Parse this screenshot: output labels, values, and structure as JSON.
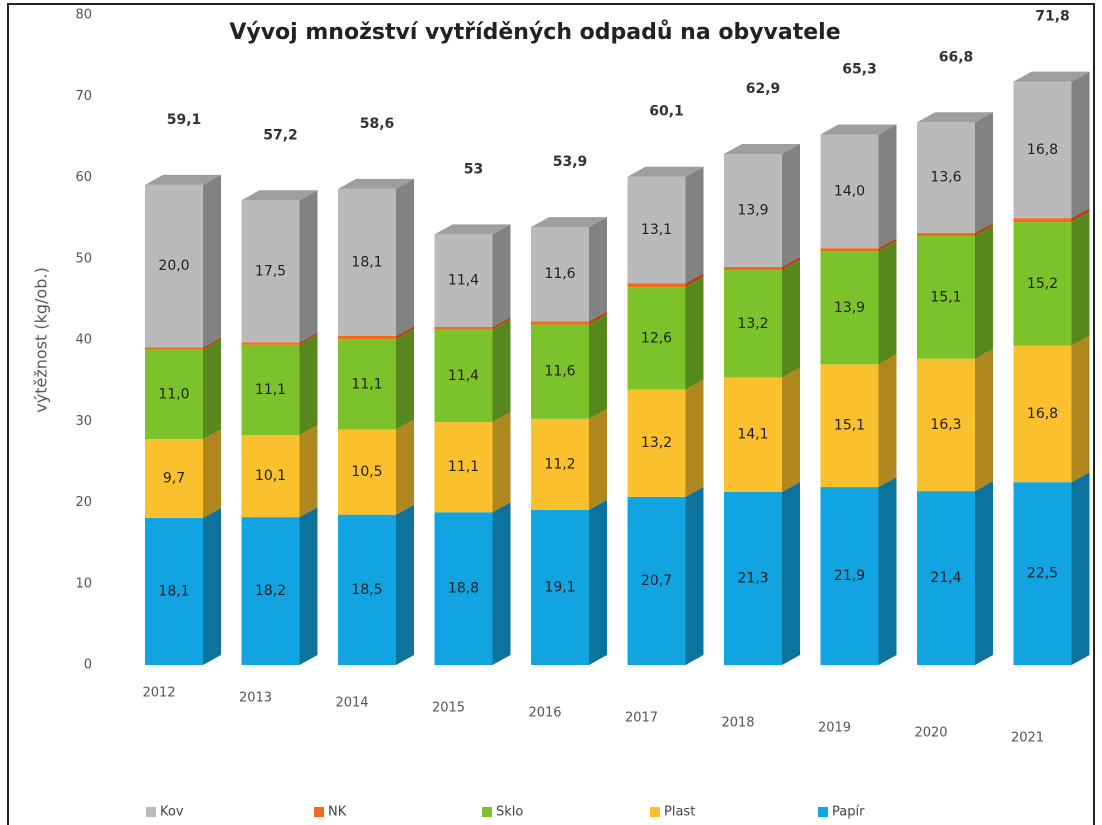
{
  "chart_data": {
    "type": "bar3d_stacked",
    "title": "Vývoj množství vytříděných odpadů na obyvatele",
    "y_label": "výtěžnost (kg/ob.)",
    "categories": [
      "2012",
      "2013",
      "2014",
      "2015",
      "2016",
      "2017",
      "2018",
      "2019",
      "2020",
      "2021"
    ],
    "series": [
      {
        "name": "Papír",
        "color": "#12a4e0",
        "values": [
          18.1,
          18.2,
          18.5,
          18.8,
          19.1,
          20.7,
          21.3,
          21.9,
          21.4,
          22.5
        ],
        "value_labels": [
          "18,1",
          "18,2",
          "18,5",
          "18,8",
          "19,1",
          "20,7",
          "21,3",
          "21,9",
          "21,4",
          "22,5"
        ]
      },
      {
        "name": "Plast",
        "color": "#fbc02d",
        "values": [
          9.7,
          10.1,
          10.5,
          11.1,
          11.2,
          13.2,
          14.1,
          15.1,
          16.3,
          16.8
        ],
        "value_labels": [
          "9,7",
          "10,1",
          "10,5",
          "11,1",
          "11,2",
          "13,2",
          "14,1",
          "15,1",
          "16,3",
          "16,8"
        ]
      },
      {
        "name": "Sklo",
        "color": "#7cc22a",
        "values": [
          11.0,
          11.1,
          11.1,
          11.4,
          11.6,
          12.6,
          13.2,
          13.9,
          15.1,
          15.2
        ],
        "value_labels": [
          "11,0",
          "11,1",
          "11,1",
          "11,4",
          "11,6",
          "12,6",
          "13,2",
          "13,9",
          "15,1",
          "15,2"
        ]
      },
      {
        "name": "NK",
        "color": "#f26b1d",
        "values": [
          0.3,
          0.3,
          0.4,
          0.3,
          0.4,
          0.5,
          0.4,
          0.4,
          0.4,
          0.5
        ]
      },
      {
        "name": "Kov",
        "color": "#bababa",
        "values": [
          20.0,
          17.5,
          18.1,
          11.4,
          11.6,
          13.1,
          13.9,
          14.0,
          13.6,
          16.8
        ],
        "value_labels": [
          "20,0",
          "17,5",
          "18,1",
          "11,4",
          "11,6",
          "13,1",
          "13,9",
          "14,0",
          "13,6",
          "16,8"
        ]
      }
    ],
    "totals": {
      "values": [
        59.1,
        57.2,
        58.6,
        53,
        53.9,
        60.1,
        62.9,
        65.3,
        66.8,
        71.8
      ],
      "value_labels": [
        "59,1",
        "57,2",
        "58,6",
        "53",
        "53,9",
        "60,1",
        "62,9",
        "65,3",
        "66,8",
        "71,8"
      ]
    },
    "ylim": [
      0,
      80
    ],
    "yticks": [
      0,
      10,
      20,
      30,
      40,
      50,
      60,
      70,
      80
    ],
    "legend": "bottom"
  }
}
